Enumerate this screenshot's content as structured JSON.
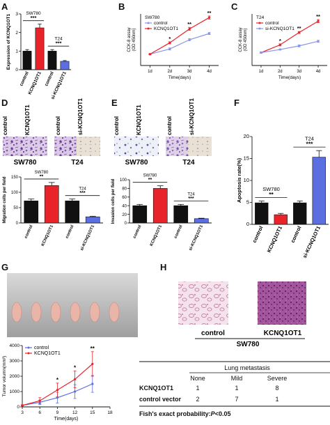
{
  "panel_labels": [
    "A",
    "B",
    "C",
    "D",
    "E",
    "F",
    "G",
    "H"
  ],
  "photo_labels": {
    "d_left": [
      "control",
      "KCNQ1OT1"
    ],
    "d_right": [
      "control",
      "si-KCNQ1OT1"
    ],
    "d_left_caption": "SW780",
    "d_right_caption": "T24",
    "e_left": [
      "control",
      "KCNQ1OT1"
    ],
    "e_right": [
      "control",
      "si-KCNQ1OT1"
    ],
    "e_left_caption": "SW780",
    "e_right_caption": "T24",
    "h_left": "control",
    "h_right": "KCNQ1OT1",
    "h_caption": "SW780"
  },
  "table": {
    "title": "Lung metastasis",
    "columns": [
      "None",
      "Mild",
      "Severe"
    ],
    "rows": [
      {
        "label": "KCNQ1OT1",
        "values": [
          "1",
          "1",
          "8"
        ]
      },
      {
        "label": "control vector",
        "values": [
          "2",
          "7",
          "1"
        ]
      }
    ],
    "footnote_prefix": "Fish's exact probability:",
    "footnote_p": "P",
    "footnote_value": "<0.05"
  },
  "colors": {
    "black": "#111111",
    "red": "#e8232a",
    "blue": "#5b6fe0",
    "lightblue": "#8a95e8"
  },
  "chart_data": [
    {
      "id": "A",
      "type": "bar",
      "ylabel": "Expression of KCNQ1OT1",
      "ylim": [
        0,
        3
      ],
      "yticks": [
        "0",
        "1",
        "2",
        "3"
      ],
      "categories": [
        "control",
        "KCNQ1OT1",
        "control",
        "si-KCNQ1OT1"
      ],
      "values": [
        1.0,
        2.25,
        1.0,
        0.45
      ],
      "errors": [
        0.08,
        0.2,
        0.08,
        0.04
      ],
      "bar_colors": [
        "#111111",
        "#e8232a",
        "#111111",
        "#5b6fe0"
      ],
      "groups": [
        {
          "label": "SW780",
          "sig": "***",
          "from": 0,
          "to": 1
        },
        {
          "label": "T24",
          "sig": "***",
          "from": 2,
          "to": 3
        }
      ]
    },
    {
      "id": "B",
      "type": "line",
      "xlabel": "Time(days)",
      "ylabel": "CCK-8 assay\n(OD 450nm)",
      "x": [
        "1d",
        "2d",
        "3d",
        "4d"
      ],
      "ylim": [
        0,
        1.0
      ],
      "legend_title": "SW780",
      "series": [
        {
          "name": "control",
          "color": "#8a95e8",
          "values": [
            0.22,
            0.32,
            0.5,
            0.62
          ],
          "errors": [
            0.01,
            0.02,
            0.02,
            0.02
          ]
        },
        {
          "name": "KCNQ1OT1",
          "color": "#e8232a",
          "values": [
            0.22,
            0.44,
            0.71,
            0.93
          ],
          "errors": [
            0.01,
            0.02,
            0.03,
            0.03
          ]
        }
      ],
      "sig": [
        "",
        "*",
        "**",
        "**"
      ]
    },
    {
      "id": "C",
      "type": "line",
      "xlabel": "Time(days)",
      "ylabel": "CCK-8 assay\n(OD 450nm)",
      "x": [
        "1d",
        "2d",
        "3d",
        "4d"
      ],
      "ylim": [
        0,
        1.0
      ],
      "legend_title": "T24",
      "series": [
        {
          "name": "control",
          "color": "#e8232a",
          "values": [
            0.25,
            0.4,
            0.64,
            0.86
          ],
          "errors": [
            0.01,
            0.02,
            0.02,
            0.03
          ]
        },
        {
          "name": "si-KCNQ1OT1",
          "color": "#8a95e8",
          "values": [
            0.25,
            0.31,
            0.38,
            0.47
          ],
          "errors": [
            0.01,
            0.01,
            0.02,
            0.02
          ]
        }
      ],
      "sig": [
        "",
        "*",
        "**",
        "**"
      ]
    },
    {
      "id": "D",
      "type": "bar",
      "ylabel": "Migration cells per field",
      "ylim": [
        0,
        150
      ],
      "yticks": [
        "0",
        "50",
        "100",
        "150"
      ],
      "categories": [
        "control",
        "KCNQ1OT1",
        "control",
        "si-KCNQ1OT1"
      ],
      "values": [
        72,
        122,
        72,
        20
      ],
      "errors": [
        6,
        10,
        6,
        2
      ],
      "bar_colors": [
        "#111111",
        "#e8232a",
        "#111111",
        "#5b6fe0"
      ],
      "groups": [
        {
          "label": "SW780",
          "sig": "**",
          "from": 0,
          "to": 1
        },
        {
          "label": "T24",
          "sig": "***",
          "from": 2,
          "to": 3
        }
      ]
    },
    {
      "id": "E",
      "type": "bar",
      "ylabel": "Invasion cells per field",
      "ylim": [
        0,
        100
      ],
      "yticks": [
        "0",
        "20",
        "40",
        "60",
        "80",
        "100"
      ],
      "categories": [
        "control",
        "KCNQ1OT1",
        "control",
        "si-KCNQ1OT1"
      ],
      "values": [
        40,
        80,
        40,
        10
      ],
      "errors": [
        3,
        6,
        3,
        1
      ],
      "bar_colors": [
        "#111111",
        "#e8232a",
        "#111111",
        "#5b6fe0"
      ],
      "groups": [
        {
          "label": "SW780",
          "sig": "**",
          "from": 0,
          "to": 1
        },
        {
          "label": "T24",
          "sig": "***",
          "from": 2,
          "to": 3
        }
      ]
    },
    {
      "id": "F",
      "type": "bar",
      "ylabel": "Apoptosis rate(%)",
      "ylim": [
        0,
        20
      ],
      "yticks": [
        "0",
        "5",
        "10",
        "15",
        "20"
      ],
      "categories": [
        "control",
        "KCNQ1OT1",
        "control",
        "si-KCNQ1OT1"
      ],
      "values": [
        4.9,
        2.2,
        4.9,
        15.3
      ],
      "errors": [
        0.4,
        0.3,
        0.4,
        1.5
      ],
      "bar_colors": [
        "#111111",
        "#e8232a",
        "#111111",
        "#5b6fe0"
      ],
      "groups": [
        {
          "label": "SW780",
          "sig": "**",
          "from": 0,
          "to": 1
        },
        {
          "label": "T24",
          "sig": "***",
          "from": 2,
          "to": 3
        }
      ]
    },
    {
      "id": "G",
      "type": "line",
      "xlabel": "Time(days)",
      "ylabel": "Tumor volumn(mm³)",
      "x": [
        3,
        6,
        9,
        12,
        15
      ],
      "xticks": [
        "3",
        "6",
        "9",
        "12",
        "15",
        "18"
      ],
      "xlim": [
        3,
        18
      ],
      "ylim": [
        0,
        4000
      ],
      "yticks": [
        "0",
        "1000",
        "2000",
        "3000",
        "4000"
      ],
      "series": [
        {
          "name": "control",
          "color": "#5b6fe0",
          "values": [
            100,
            300,
            600,
            1000,
            1500
          ],
          "errors": [
            40,
            150,
            350,
            450,
            550
          ]
        },
        {
          "name": "KCNQ1OT1",
          "color": "#e8232a",
          "values": [
            100,
            400,
            1100,
            1800,
            2800
          ],
          "errors": [
            40,
            200,
            450,
            550,
            800
          ]
        }
      ],
      "sig": [
        "",
        "",
        "*",
        "*",
        "**"
      ]
    }
  ]
}
